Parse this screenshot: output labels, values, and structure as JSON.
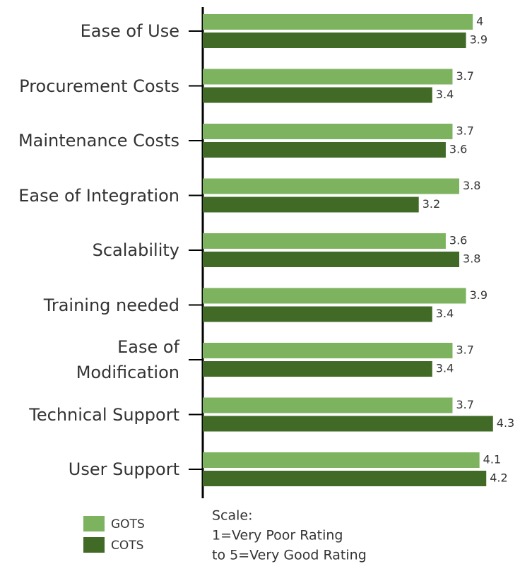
{
  "chart_data": {
    "type": "bar",
    "orientation": "horizontal",
    "categories": [
      "Ease of Use",
      "Procurement Costs",
      "Maintenance Costs",
      "Ease of Integration",
      "Scalability",
      "Training needed",
      "Ease of\nModification",
      "Technical Support",
      "User Support"
    ],
    "series": [
      {
        "name": "GOTS",
        "color": "#7db35f",
        "values": [
          4,
          3.7,
          3.7,
          3.8,
          3.6,
          3.9,
          3.7,
          3.7,
          4.1
        ]
      },
      {
        "name": "COTS",
        "color": "#426a27",
        "values": [
          3.9,
          3.4,
          3.6,
          3.2,
          3.8,
          3.4,
          3.4,
          4.3,
          4.2
        ]
      }
    ],
    "xlim": [
      0,
      4.7
    ],
    "annotation": [
      "Scale:",
      "1=Very Poor Rating",
      "to 5=Very Good Rating"
    ]
  }
}
